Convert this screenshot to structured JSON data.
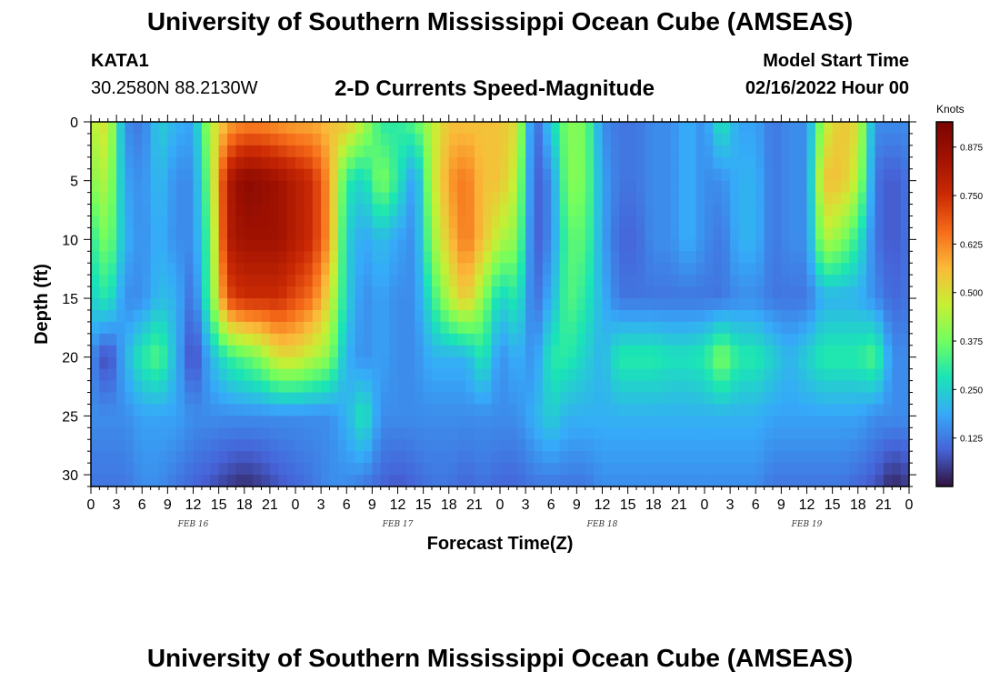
{
  "header": {
    "title": "University of Southern Mississippi Ocean Cube (AMSEAS)",
    "bottom_title": "University of Southern Mississippi Ocean Cube (AMSEAS)",
    "station_id": "KATA1",
    "coordinates": "30.2580N  88.2130W",
    "chart_title": "2-D Currents Speed-Magnitude",
    "model_start_label": "Model Start Time",
    "model_start_value": "02/16/2022 Hour 00"
  },
  "chart_data": {
    "type": "heatmap",
    "title": "2-D Currents Speed-Magnitude",
    "xlabel": "Forecast Time(Z)",
    "ylabel": "Depth (ft)",
    "x_unit": "hours from model start",
    "xlim": [
      0,
      96
    ],
    "ylim": [
      31,
      0
    ],
    "x_ticks": [
      0,
      3,
      6,
      9,
      12,
      15,
      18,
      21,
      24,
      27,
      30,
      33,
      36,
      39,
      42,
      45,
      48,
      51,
      54,
      57,
      60,
      63,
      66,
      69,
      72,
      75,
      78,
      81,
      84,
      87,
      90,
      93,
      96
    ],
    "x_tick_labels": [
      "0",
      "3",
      "6",
      "9",
      "12",
      "15",
      "18",
      "21",
      "0",
      "3",
      "6",
      "9",
      "12",
      "15",
      "18",
      "21",
      "0",
      "3",
      "6",
      "9",
      "12",
      "15",
      "18",
      "21",
      "0",
      "3",
      "6",
      "9",
      "12",
      "15",
      "18",
      "21",
      "0"
    ],
    "y_ticks": [
      0,
      5,
      10,
      15,
      20,
      25,
      30
    ],
    "y_tick_labels": [
      "0",
      "5",
      "10",
      "15",
      "20",
      "25",
      "30"
    ],
    "date_labels": [
      {
        "x": 12,
        "label": "FEB 16"
      },
      {
        "x": 36,
        "label": "FEB 17"
      },
      {
        "x": 60,
        "label": "FEB 18"
      },
      {
        "x": 84,
        "label": "FEB 19"
      }
    ],
    "colorbar": {
      "label": "Knots",
      "min": 0.0,
      "max": 0.94,
      "ticks": [
        0.125,
        0.25,
        0.375,
        0.5,
        0.625,
        0.75,
        0.875
      ],
      "tick_labels": [
        "0.125",
        "0.250",
        "0.375",
        "0.500",
        "0.625",
        "0.750",
        "0.875"
      ]
    },
    "grid": {
      "hours": [
        0,
        2,
        4,
        6,
        8,
        10,
        12,
        14,
        16,
        18,
        20,
        22,
        24,
        26,
        28,
        30,
        32,
        34,
        36,
        38,
        40,
        42,
        44,
        46,
        48,
        50,
        52,
        54,
        56,
        58,
        60,
        62,
        64,
        66,
        68,
        70,
        72,
        74,
        76,
        78,
        80,
        82,
        84,
        86,
        88,
        90,
        92,
        94,
        96
      ],
      "depths_ft": [
        0,
        5,
        10,
        15,
        20,
        25,
        31
      ],
      "speed_knots": [
        [
          0.45,
          0.5,
          0.15,
          0.12,
          0.25,
          0.2,
          0.18,
          0.45,
          0.58,
          0.62,
          0.62,
          0.6,
          0.58,
          0.58,
          0.55,
          0.55,
          0.45,
          0.3,
          0.3,
          0.35,
          0.45,
          0.55,
          0.55,
          0.55,
          0.55,
          0.5,
          0.08,
          0.25,
          0.4,
          0.38,
          0.15,
          0.12,
          0.12,
          0.15,
          0.15,
          0.2,
          0.15,
          0.3,
          0.18,
          0.18,
          0.12,
          0.15,
          0.15,
          0.45,
          0.55,
          0.5,
          0.15,
          0.15,
          0.15
        ],
        [
          0.4,
          0.45,
          0.18,
          0.15,
          0.22,
          0.15,
          0.15,
          0.4,
          0.8,
          0.9,
          0.88,
          0.85,
          0.8,
          0.75,
          0.6,
          0.3,
          0.25,
          0.4,
          0.3,
          0.15,
          0.45,
          0.6,
          0.65,
          0.55,
          0.55,
          0.45,
          0.08,
          0.15,
          0.4,
          0.38,
          0.18,
          0.12,
          0.12,
          0.15,
          0.15,
          0.2,
          0.15,
          0.15,
          0.2,
          0.2,
          0.12,
          0.15,
          0.15,
          0.55,
          0.55,
          0.45,
          0.12,
          0.08,
          0.12
        ],
        [
          0.3,
          0.4,
          0.2,
          0.15,
          0.2,
          0.15,
          0.15,
          0.35,
          0.8,
          0.85,
          0.85,
          0.85,
          0.8,
          0.75,
          0.6,
          0.25,
          0.18,
          0.22,
          0.18,
          0.15,
          0.4,
          0.55,
          0.65,
          0.55,
          0.45,
          0.4,
          0.08,
          0.15,
          0.35,
          0.35,
          0.18,
          0.1,
          0.1,
          0.15,
          0.15,
          0.2,
          0.15,
          0.12,
          0.2,
          0.2,
          0.12,
          0.15,
          0.15,
          0.45,
          0.4,
          0.3,
          0.12,
          0.08,
          0.12
        ],
        [
          0.25,
          0.3,
          0.15,
          0.15,
          0.22,
          0.2,
          0.1,
          0.35,
          0.7,
          0.75,
          0.75,
          0.75,
          0.7,
          0.65,
          0.5,
          0.25,
          0.15,
          0.18,
          0.15,
          0.15,
          0.3,
          0.45,
          0.55,
          0.4,
          0.25,
          0.3,
          0.1,
          0.2,
          0.35,
          0.3,
          0.2,
          0.12,
          0.12,
          0.12,
          0.12,
          0.12,
          0.12,
          0.12,
          0.15,
          0.15,
          0.12,
          0.12,
          0.12,
          0.2,
          0.2,
          0.2,
          0.15,
          0.1,
          0.12
        ],
        [
          0.15,
          0.05,
          0.2,
          0.3,
          0.35,
          0.2,
          0.05,
          0.2,
          0.3,
          0.35,
          0.4,
          0.5,
          0.5,
          0.45,
          0.4,
          0.2,
          0.15,
          0.18,
          0.15,
          0.15,
          0.2,
          0.2,
          0.2,
          0.3,
          0.15,
          0.2,
          0.15,
          0.3,
          0.3,
          0.25,
          0.2,
          0.3,
          0.3,
          0.3,
          0.28,
          0.28,
          0.3,
          0.4,
          0.3,
          0.3,
          0.25,
          0.2,
          0.25,
          0.3,
          0.3,
          0.3,
          0.35,
          0.15,
          0.15
        ],
        [
          0.15,
          0.15,
          0.15,
          0.18,
          0.18,
          0.18,
          0.15,
          0.15,
          0.15,
          0.15,
          0.15,
          0.15,
          0.15,
          0.15,
          0.15,
          0.2,
          0.3,
          0.15,
          0.15,
          0.15,
          0.15,
          0.15,
          0.15,
          0.15,
          0.15,
          0.15,
          0.2,
          0.25,
          0.2,
          0.2,
          0.2,
          0.2,
          0.2,
          0.2,
          0.2,
          0.2,
          0.2,
          0.2,
          0.2,
          0.2,
          0.18,
          0.18,
          0.18,
          0.18,
          0.18,
          0.18,
          0.15,
          0.15,
          0.15
        ],
        [
          0.12,
          0.12,
          0.12,
          0.15,
          0.15,
          0.12,
          0.1,
          0.08,
          0.05,
          0.03,
          0.05,
          0.08,
          0.1,
          0.12,
          0.15,
          0.15,
          0.12,
          0.1,
          0.08,
          0.1,
          0.12,
          0.12,
          0.1,
          0.12,
          0.1,
          0.1,
          0.12,
          0.12,
          0.12,
          0.12,
          0.15,
          0.15,
          0.15,
          0.15,
          0.15,
          0.15,
          0.15,
          0.15,
          0.15,
          0.15,
          0.12,
          0.12,
          0.12,
          0.12,
          0.12,
          0.1,
          0.08,
          0.02,
          0.05
        ]
      ]
    }
  }
}
